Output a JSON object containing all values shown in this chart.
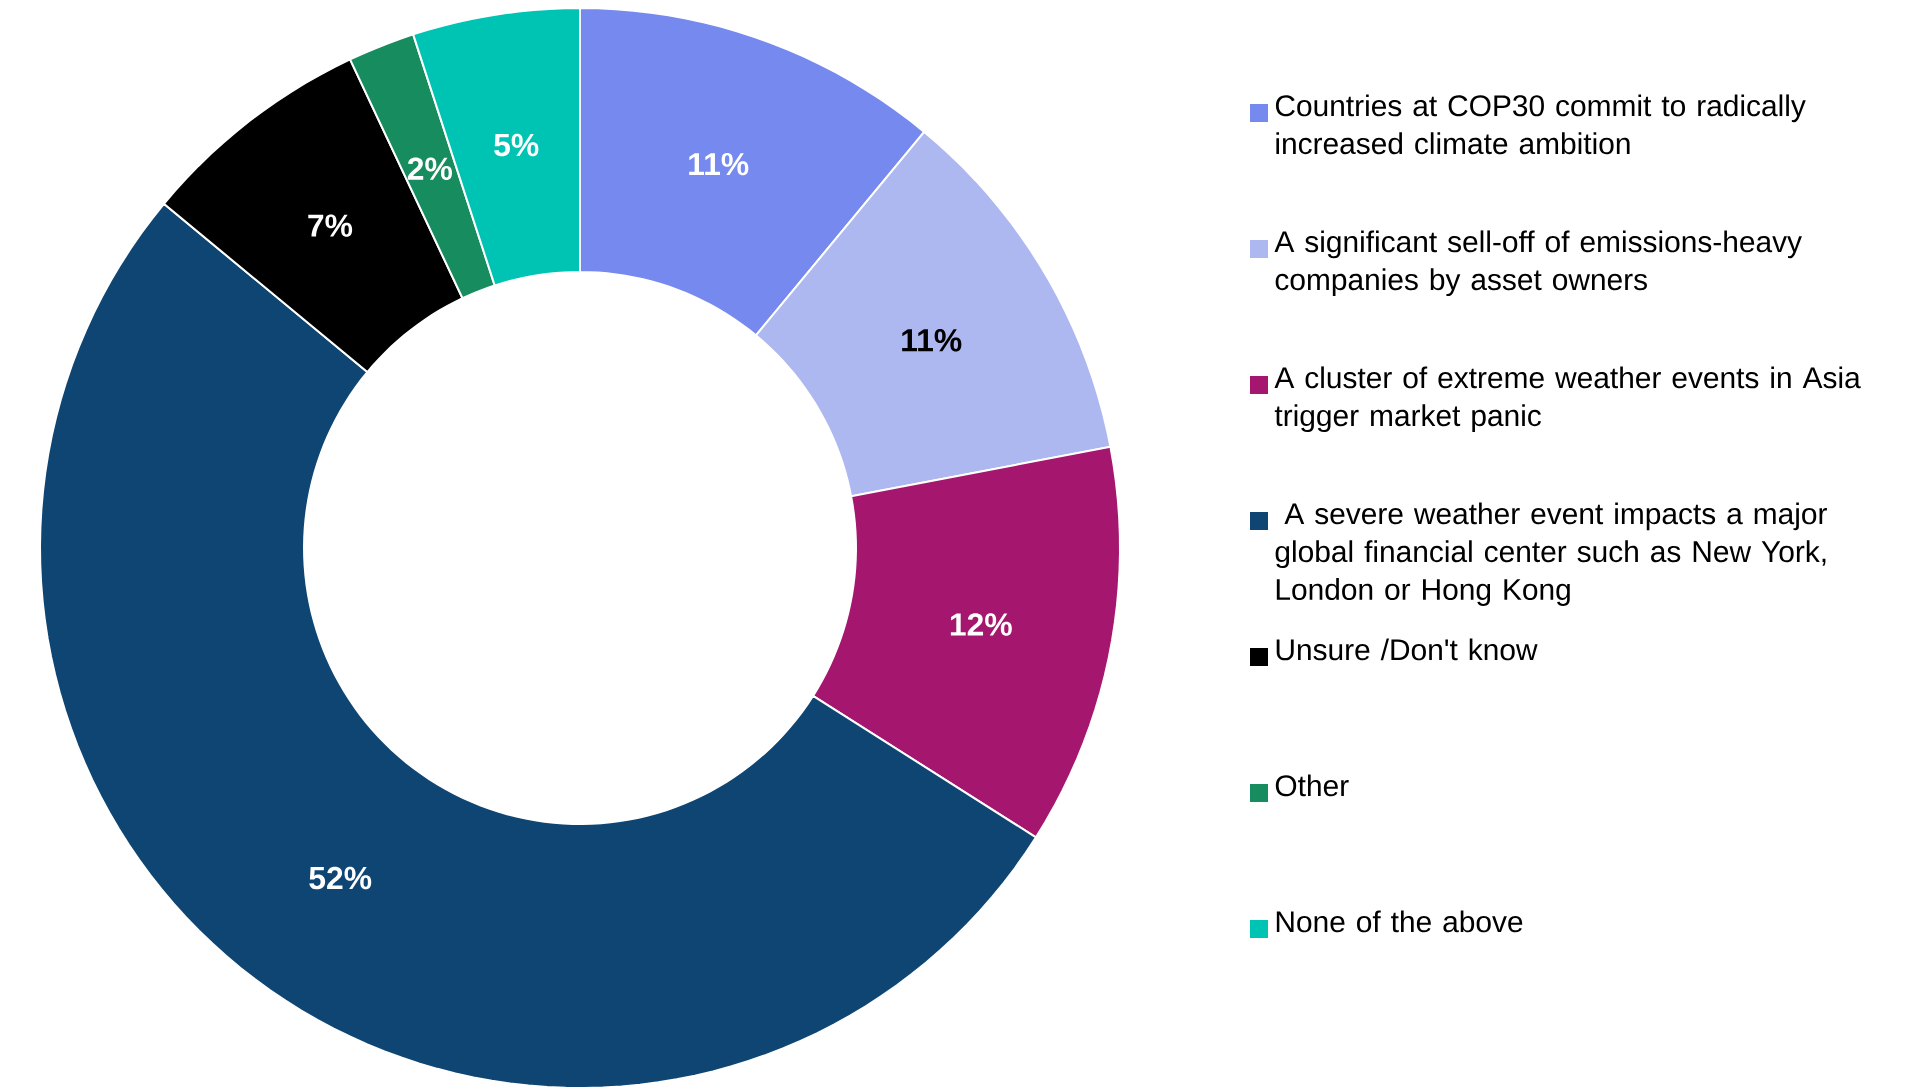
{
  "chart_data": {
    "type": "donut",
    "categories": [
      "Countries at COP30 commit to radically increased climate ambition",
      "A significant sell-off of emissions-heavy companies by asset owners",
      "A cluster of extreme weather events in Asia trigger market panic",
      " A severe weather event impacts a major global financial center such as New York, London or Hong Kong",
      "Unsure /Don't know",
      "Other",
      "None of the above"
    ],
    "values": [
      11,
      11,
      12,
      52,
      7,
      2,
      5
    ],
    "value_labels": [
      "11%",
      "11%",
      "12%",
      "52%",
      "7%",
      "2%",
      "5%"
    ],
    "colors": [
      "#7589ee",
      "#adb8f0",
      "#a5166f",
      "#0f4572",
      "#000000",
      "#178c5e",
      "#00c4b3"
    ],
    "legend": "right"
  }
}
